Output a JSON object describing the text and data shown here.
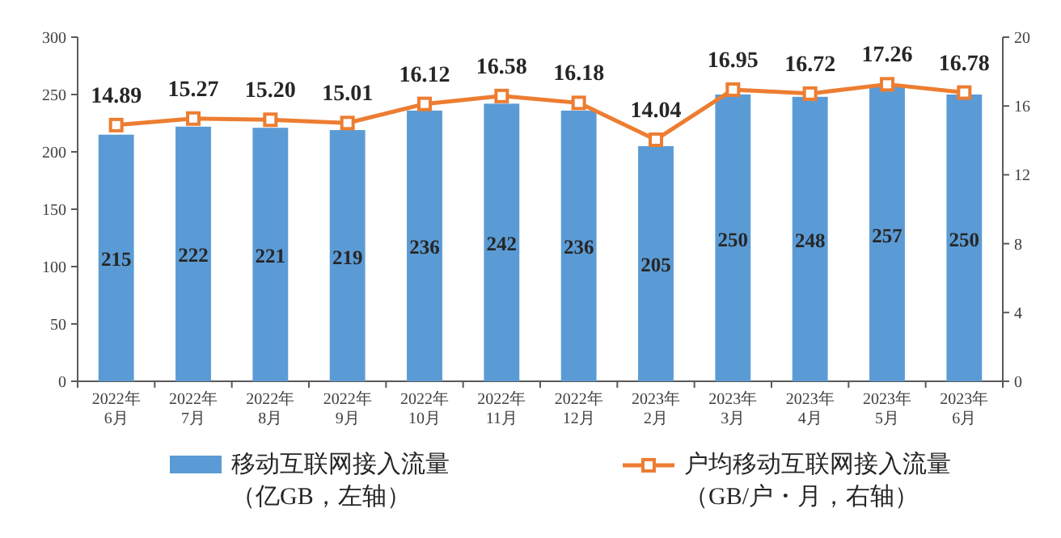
{
  "chart_data": {
    "type": "bar",
    "categories": [
      "2022年\n6月",
      "2022年\n7月",
      "2022年\n8月",
      "2022年\n9月",
      "2022年\n10月",
      "2022年\n11月",
      "2022年\n12月",
      "2023年\n2月",
      "2023年\n3月",
      "2023年\n4月",
      "2023年\n5月",
      "2023年\n6月"
    ],
    "series": [
      {
        "name": "移动互联网接入流量（亿GB，左轴）",
        "color": "#5b9bd5",
        "values": [
          215,
          222,
          221,
          219,
          236,
          242,
          236,
          205,
          250,
          248,
          257,
          250
        ]
      },
      {
        "name": "户均移动互联网接入流量（GB/户・月，右轴）",
        "type": "line",
        "axis": "y2",
        "color": "#ed7d31",
        "marker": "square",
        "line_style": "solid",
        "values": [
          14.89,
          15.27,
          15.2,
          15.01,
          16.12,
          16.58,
          16.18,
          14.04,
          16.95,
          16.72,
          17.26,
          16.78
        ],
        "value_labels": [
          "14.89",
          "15.27",
          "15.20",
          "15.01",
          "16.12",
          "16.58",
          "16.18",
          "14.04",
          "16.95",
          "16.72",
          "17.26",
          "16.78"
        ]
      }
    ],
    "ylim": [
      0,
      300
    ],
    "yticks": [
      0,
      50,
      100,
      150,
      200,
      250,
      300
    ],
    "y2lim": [
      0,
      20
    ],
    "y2ticks": [
      0,
      4,
      8,
      12,
      16,
      20
    ],
    "data_labels": true,
    "grid": false,
    "legend": "bottom"
  }
}
